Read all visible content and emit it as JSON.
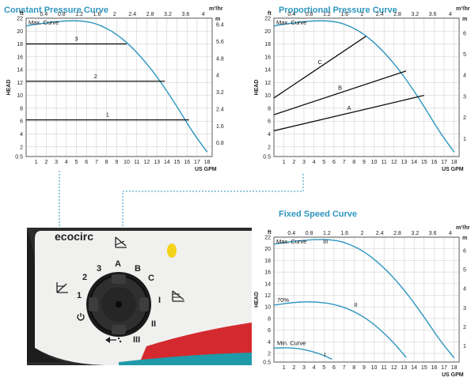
{
  "chart_data": [
    {
      "type": "line",
      "title": "Constant Pressure Curve",
      "xlabel": "US GPM",
      "ylabel": "HEAD",
      "y_unit_left": "ft",
      "y_unit_right": "m",
      "x_unit_top": "m³/hr",
      "xlim": [
        0,
        18.5
      ],
      "ylim": [
        0.5,
        22
      ],
      "x_ticks": [
        "1",
        "2",
        "3",
        "4",
        "5",
        "6",
        "7",
        "8",
        "9",
        "10",
        "11",
        "12",
        "13",
        "14",
        "15",
        "16",
        "17",
        "18"
      ],
      "y_ticks": [
        "22",
        "20",
        "18",
        "16",
        "14",
        "12",
        "10",
        "8",
        "6",
        "4",
        "2",
        "0.5"
      ],
      "top_ticks": [
        "0.4",
        "0.8",
        "1.2",
        "1.6",
        "2",
        "2.4",
        "2.8",
        "3.2",
        "3.6",
        "4"
      ],
      "right_ticks": [
        "6.4",
        "5.6",
        "4.8",
        "4",
        "3.2",
        "2.4",
        "1.6",
        "0.8"
      ],
      "series": [
        {
          "name": "Max. Curve",
          "kind": "curve",
          "x": [
            0,
            2,
            4,
            5.5,
            7,
            9,
            11,
            13,
            15,
            16.5,
            18
          ],
          "y": [
            20.8,
            21.3,
            21.6,
            21.6,
            21.2,
            19.6,
            16.8,
            13.0,
            8.3,
            4.4,
            1.2
          ]
        },
        {
          "name": "3",
          "kind": "line",
          "x": [
            0,
            10
          ],
          "y": [
            18,
            18
          ]
        },
        {
          "name": "2",
          "kind": "line",
          "x": [
            0,
            13.8
          ],
          "y": [
            12.2,
            12.2
          ]
        },
        {
          "name": "1",
          "kind": "line",
          "x": [
            0,
            16.2
          ],
          "y": [
            6.2,
            6.2
          ]
        }
      ]
    },
    {
      "type": "line",
      "title": "Proportional Pressure Curve",
      "xlabel": "US GPM",
      "ylabel": "HEAD",
      "y_unit_left": "ft",
      "y_unit_right": "m",
      "x_unit_top": "m³/hr",
      "xlim": [
        0,
        18.5
      ],
      "ylim": [
        0.5,
        22
      ],
      "x_ticks": [
        "1",
        "2",
        "3",
        "4",
        "5",
        "6",
        "7",
        "8",
        "9",
        "10",
        "11",
        "12",
        "13",
        "14",
        "15",
        "16",
        "17",
        "18"
      ],
      "y_ticks": [
        "22",
        "20",
        "18",
        "16",
        "14",
        "12",
        "10",
        "8",
        "6",
        "4",
        "2",
        "0.5"
      ],
      "top_ticks": [
        "0.4",
        "0.8",
        "1.2",
        "1.6",
        "2",
        "2.4",
        "2.8",
        "3.2",
        "3.6",
        "4"
      ],
      "right_ticks": [
        "6",
        "5",
        "4",
        "3",
        "2",
        "1"
      ],
      "series": [
        {
          "name": "Max. Curve",
          "kind": "curve",
          "x": [
            0,
            2,
            4,
            5.5,
            7,
            9,
            11,
            13,
            15,
            16.5,
            18
          ],
          "y": [
            20.8,
            21.3,
            21.6,
            21.6,
            21.2,
            19.6,
            16.8,
            13.0,
            8.3,
            4.4,
            1.2
          ]
        },
        {
          "name": "C",
          "kind": "line",
          "x": [
            0,
            9.2
          ],
          "y": [
            9.6,
            19.2
          ]
        },
        {
          "name": "B",
          "kind": "line",
          "x": [
            0,
            13.2
          ],
          "y": [
            7.0,
            13.8
          ]
        },
        {
          "name": "A",
          "kind": "line",
          "x": [
            0,
            15.0
          ],
          "y": [
            4.5,
            10.0
          ]
        }
      ]
    },
    {
      "type": "line",
      "title": "Fixed Speed Curve",
      "xlabel": "US GPM",
      "ylabel": "HEAD",
      "y_unit_left": "ft",
      "y_unit_right": "m",
      "x_unit_top": "m³/hr",
      "xlim": [
        0,
        18.5
      ],
      "ylim": [
        0.5,
        22
      ],
      "x_ticks": [
        "1",
        "2",
        "3",
        "4",
        "5",
        "6",
        "7",
        "8",
        "9",
        "10",
        "11",
        "12",
        "13",
        "14",
        "15",
        "16",
        "17",
        "18"
      ],
      "y_ticks": [
        "22",
        "20",
        "18",
        "16",
        "14",
        "12",
        "10",
        "8",
        "6",
        "4",
        "2",
        "0.5"
      ],
      "top_ticks": [
        "0.4",
        "0.8",
        "1.2",
        "1.6",
        "2",
        "2.4",
        "2.8",
        "3.2",
        "3.6",
        "4"
      ],
      "right_ticks": [
        "6",
        "5",
        "4",
        "3",
        "2",
        "1"
      ],
      "series": [
        {
          "name": "Max. Curve",
          "tag": "III",
          "kind": "curve",
          "x": [
            0,
            2,
            4,
            5.5,
            7,
            9,
            11,
            13,
            15,
            16.5,
            18
          ],
          "y": [
            20.8,
            21.3,
            21.6,
            21.6,
            21.2,
            19.6,
            16.8,
            13.0,
            8.3,
            4.4,
            1.2
          ]
        },
        {
          "name": "70%",
          "tag": "II",
          "kind": "curve",
          "x": [
            0,
            2,
            4,
            6,
            8,
            10,
            12,
            13.2
          ],
          "y": [
            10.3,
            10.8,
            10.9,
            10.5,
            9.3,
            7.1,
            3.8,
            1.3
          ]
        },
        {
          "name": "Min. Curve",
          "tag": "I",
          "kind": "curve",
          "x": [
            0,
            1.5,
            3,
            4.5,
            5.8
          ],
          "y": [
            2.9,
            3.0,
            2.7,
            2.0,
            1.0
          ]
        }
      ]
    }
  ],
  "device": {
    "brand": "ecocirc",
    "dial_labels": [
      "1",
      "2",
      "3",
      "A",
      "B",
      "C",
      "I",
      "II",
      "III"
    ],
    "colors": {
      "body": "#2b2b2b",
      "face": "#f0f0ef",
      "red": "#d42a2f",
      "teal": "#1f9aa8",
      "yellow": "#f3d21a",
      "accent": "#2e96bf"
    },
    "icons": [
      "constant-pressure-icon",
      "proportional-pressure-icon",
      "fixed-speed-icon",
      "power-icon",
      "air-purge-icon"
    ]
  }
}
